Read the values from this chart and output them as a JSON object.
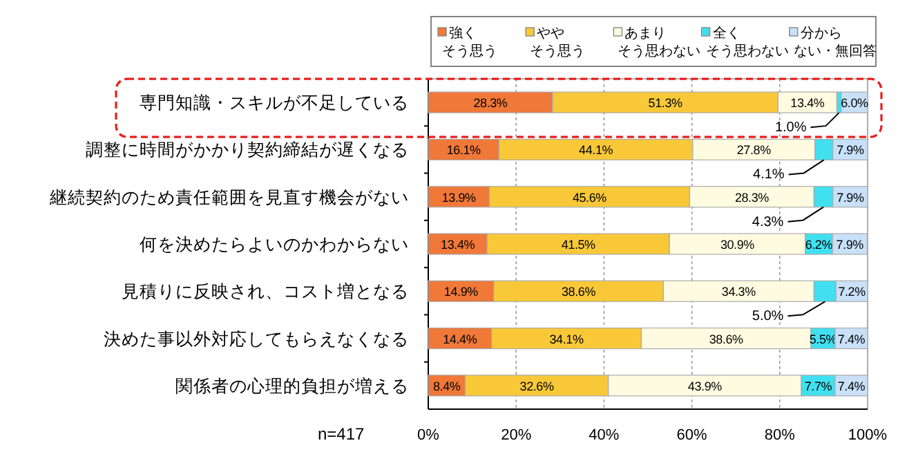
{
  "chart_data": {
    "type": "bar",
    "orientation": "horizontal",
    "stacked": true,
    "grid": "x",
    "legend": "top",
    "categories": [
      "専門知識・スキルが不足している",
      "調整に時間がかかり契約締結が遅くなる",
      "継続契約のため責任範囲を見直す機会がない",
      "何を決めたらよいのかわからない",
      "見積りに反映され、コスト増となる",
      "決めた事以外対応してもらえなくなる",
      "関係者の心理的負担が増える"
    ],
    "series": [
      {
        "name": "強くそう思う",
        "color": "#f07838",
        "values": [
          28.3,
          16.1,
          13.9,
          13.4,
          14.9,
          14.4,
          8.4
        ],
        "value_labels": [
          "28.3%",
          "16.1%",
          "13.9%",
          "13.4%",
          "14.9%",
          "14.4%",
          "8.4%"
        ]
      },
      {
        "name": "ややそう思う",
        "color": "#f8c838",
        "values": [
          51.3,
          44.1,
          45.6,
          41.5,
          38.6,
          34.1,
          32.6
        ],
        "value_labels": [
          "51.3%",
          "44.1%",
          "45.6%",
          "41.5%",
          "38.6%",
          "34.1%",
          "32.6%"
        ]
      },
      {
        "name": "あまりそう思わない",
        "color": "#fffbe0",
        "values": [
          13.4,
          27.8,
          28.3,
          30.9,
          34.3,
          38.6,
          43.9
        ],
        "value_labels": [
          "13.4%",
          "27.8%",
          "28.3%",
          "30.9%",
          "34.3%",
          "38.6%",
          "43.9%"
        ]
      },
      {
        "name": "全くそう思わない",
        "color": "#40e0f0",
        "values": [
          1.0,
          4.1,
          4.3,
          6.2,
          5.0,
          5.5,
          7.7
        ],
        "value_labels": [
          "1.0%",
          "4.1%",
          "4.3%",
          "6.2%",
          "5.0%",
          "5.5%",
          "7.7%"
        ]
      },
      {
        "name": "分からない・無回答",
        "color": "#c8e0f8",
        "values": [
          6.0,
          7.9,
          7.9,
          7.9,
          7.2,
          7.4,
          7.4
        ],
        "value_labels": [
          "6.0%",
          "7.9%",
          "7.9%",
          "7.9%",
          "7.2%",
          "7.4%",
          "7.4%"
        ]
      }
    ],
    "xlim": [
      0,
      100
    ],
    "xticks": [
      {
        "value": 0,
        "label": "0%"
      },
      {
        "value": 20,
        "label": "20%"
      },
      {
        "value": 40,
        "label": "40%"
      },
      {
        "value": 60,
        "label": "60%"
      },
      {
        "value": 80,
        "label": "80%"
      },
      {
        "value": 100,
        "label": "100%"
      }
    ],
    "annotations": [
      "n=417"
    ]
  }
}
